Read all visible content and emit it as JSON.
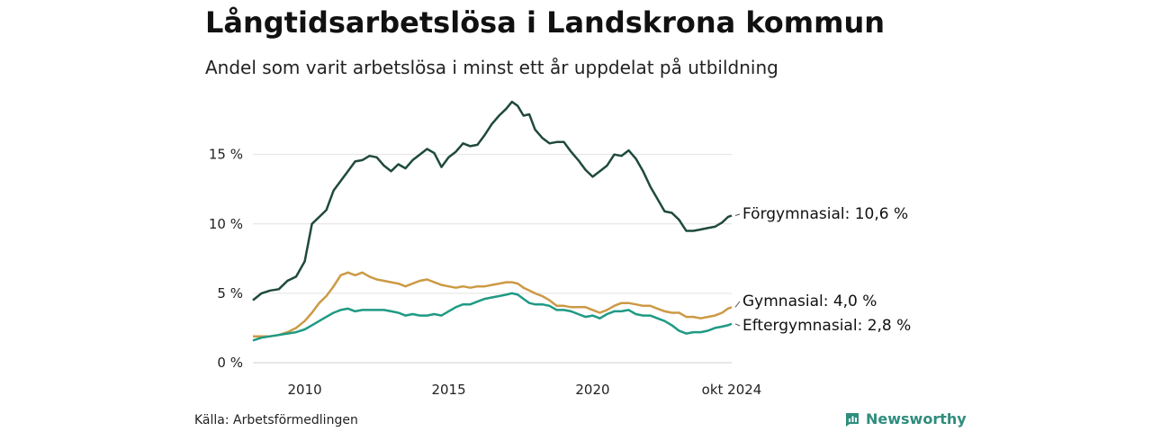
{
  "title": "Långtidsarbetslösa i Landskrona kommun",
  "subtitle": "Andel som varit arbetslösa i minst ett år uppdelat på utbildning",
  "source": "Källa: Arbetsförmedlingen",
  "brand": "Newsworthy",
  "chart_data": {
    "type": "line",
    "title": "Långtidsarbetslösa i Landskrona kommun",
    "subtitle": "Andel som varit arbetslösa i minst ett år uppdelat på utbildning",
    "xlabel": "",
    "ylabel": "",
    "xlim": [
      2008.2,
      2024.83
    ],
    "ylim": [
      0,
      19
    ],
    "x_ticks": [
      {
        "value": 2010,
        "label": "2010"
      },
      {
        "value": 2015,
        "label": "2015"
      },
      {
        "value": 2020,
        "label": "2020"
      },
      {
        "value": 2024.83,
        "label": "okt 2024"
      }
    ],
    "y_ticks": [
      {
        "value": 0,
        "label": "0 %"
      },
      {
        "value": 5,
        "label": "5 %"
      },
      {
        "value": 10,
        "label": "10 %"
      },
      {
        "value": 15,
        "label": "15 %"
      }
    ],
    "grid": "horizontal",
    "legend": "end labels",
    "series": [
      {
        "name": "Förgymnasial",
        "end_label": "Förgymnasial: 10,6 %",
        "color": "#1f4a3c",
        "points": [
          [
            2008.2,
            4.5
          ],
          [
            2008.5,
            5.0
          ],
          [
            2008.8,
            5.2
          ],
          [
            2009.1,
            5.3
          ],
          [
            2009.4,
            5.9
          ],
          [
            2009.7,
            6.2
          ],
          [
            2010.0,
            7.3
          ],
          [
            2010.25,
            10.0
          ],
          [
            2010.5,
            10.5
          ],
          [
            2010.75,
            11.0
          ],
          [
            2011.0,
            12.4
          ],
          [
            2011.25,
            13.1
          ],
          [
            2011.5,
            13.8
          ],
          [
            2011.75,
            14.5
          ],
          [
            2012.0,
            14.6
          ],
          [
            2012.25,
            14.9
          ],
          [
            2012.5,
            14.8
          ],
          [
            2012.75,
            14.2
          ],
          [
            2013.0,
            13.8
          ],
          [
            2013.25,
            14.3
          ],
          [
            2013.5,
            14.0
          ],
          [
            2013.75,
            14.6
          ],
          [
            2014.0,
            15.0
          ],
          [
            2014.25,
            15.4
          ],
          [
            2014.5,
            15.1
          ],
          [
            2014.75,
            14.1
          ],
          [
            2015.0,
            14.8
          ],
          [
            2015.25,
            15.2
          ],
          [
            2015.5,
            15.8
          ],
          [
            2015.75,
            15.6
          ],
          [
            2016.0,
            15.7
          ],
          [
            2016.25,
            16.4
          ],
          [
            2016.5,
            17.2
          ],
          [
            2016.75,
            17.8
          ],
          [
            2017.0,
            18.3
          ],
          [
            2017.2,
            18.8
          ],
          [
            2017.4,
            18.5
          ],
          [
            2017.6,
            17.8
          ],
          [
            2017.8,
            17.9
          ],
          [
            2018.0,
            16.8
          ],
          [
            2018.25,
            16.2
          ],
          [
            2018.5,
            15.8
          ],
          [
            2018.75,
            15.9
          ],
          [
            2019.0,
            15.9
          ],
          [
            2019.25,
            15.2
          ],
          [
            2019.5,
            14.6
          ],
          [
            2019.75,
            13.9
          ],
          [
            2020.0,
            13.4
          ],
          [
            2020.25,
            13.8
          ],
          [
            2020.5,
            14.2
          ],
          [
            2020.75,
            15.0
          ],
          [
            2021.0,
            14.9
          ],
          [
            2021.25,
            15.3
          ],
          [
            2021.5,
            14.7
          ],
          [
            2021.75,
            13.8
          ],
          [
            2022.0,
            12.7
          ],
          [
            2022.25,
            11.8
          ],
          [
            2022.5,
            10.9
          ],
          [
            2022.75,
            10.8
          ],
          [
            2023.0,
            10.3
          ],
          [
            2023.25,
            9.5
          ],
          [
            2023.5,
            9.5
          ],
          [
            2023.75,
            9.6
          ],
          [
            2024.0,
            9.7
          ],
          [
            2024.25,
            9.8
          ],
          [
            2024.5,
            10.1
          ],
          [
            2024.7,
            10.5
          ],
          [
            2024.83,
            10.6
          ]
        ]
      },
      {
        "name": "Gymnasial",
        "end_label": "Gymnasial:  4,0 %",
        "color": "#cc9a45",
        "points": [
          [
            2008.2,
            1.9
          ],
          [
            2008.5,
            1.9
          ],
          [
            2008.8,
            1.9
          ],
          [
            2009.1,
            2.0
          ],
          [
            2009.4,
            2.2
          ],
          [
            2009.7,
            2.5
          ],
          [
            2010.0,
            3.0
          ],
          [
            2010.25,
            3.6
          ],
          [
            2010.5,
            4.3
          ],
          [
            2010.75,
            4.8
          ],
          [
            2011.0,
            5.5
          ],
          [
            2011.25,
            6.3
          ],
          [
            2011.5,
            6.5
          ],
          [
            2011.75,
            6.3
          ],
          [
            2012.0,
            6.5
          ],
          [
            2012.25,
            6.2
          ],
          [
            2012.5,
            6.0
          ],
          [
            2012.75,
            5.9
          ],
          [
            2013.0,
            5.8
          ],
          [
            2013.25,
            5.7
          ],
          [
            2013.5,
            5.5
          ],
          [
            2013.75,
            5.7
          ],
          [
            2014.0,
            5.9
          ],
          [
            2014.25,
            6.0
          ],
          [
            2014.5,
            5.8
          ],
          [
            2014.75,
            5.6
          ],
          [
            2015.0,
            5.5
          ],
          [
            2015.25,
            5.4
          ],
          [
            2015.5,
            5.5
          ],
          [
            2015.75,
            5.4
          ],
          [
            2016.0,
            5.5
          ],
          [
            2016.25,
            5.5
          ],
          [
            2016.5,
            5.6
          ],
          [
            2016.75,
            5.7
          ],
          [
            2017.0,
            5.8
          ],
          [
            2017.2,
            5.8
          ],
          [
            2017.4,
            5.7
          ],
          [
            2017.6,
            5.4
          ],
          [
            2017.8,
            5.2
          ],
          [
            2018.0,
            5.0
          ],
          [
            2018.25,
            4.8
          ],
          [
            2018.5,
            4.5
          ],
          [
            2018.75,
            4.1
          ],
          [
            2019.0,
            4.1
          ],
          [
            2019.25,
            4.0
          ],
          [
            2019.5,
            4.0
          ],
          [
            2019.75,
            4.0
          ],
          [
            2020.0,
            3.8
          ],
          [
            2020.25,
            3.6
          ],
          [
            2020.5,
            3.8
          ],
          [
            2020.75,
            4.1
          ],
          [
            2021.0,
            4.3
          ],
          [
            2021.25,
            4.3
          ],
          [
            2021.5,
            4.2
          ],
          [
            2021.75,
            4.1
          ],
          [
            2022.0,
            4.1
          ],
          [
            2022.25,
            3.9
          ],
          [
            2022.5,
            3.7
          ],
          [
            2022.75,
            3.6
          ],
          [
            2023.0,
            3.6
          ],
          [
            2023.25,
            3.3
          ],
          [
            2023.5,
            3.3
          ],
          [
            2023.75,
            3.2
          ],
          [
            2024.0,
            3.3
          ],
          [
            2024.25,
            3.4
          ],
          [
            2024.5,
            3.6
          ],
          [
            2024.7,
            3.9
          ],
          [
            2024.83,
            4.0
          ]
        ]
      },
      {
        "name": "Eftergymnasial",
        "end_label": "Eftergymnasial:  2,8 %",
        "color": "#1f9a84",
        "points": [
          [
            2008.2,
            1.6
          ],
          [
            2008.5,
            1.8
          ],
          [
            2008.8,
            1.9
          ],
          [
            2009.1,
            2.0
          ],
          [
            2009.4,
            2.1
          ],
          [
            2009.7,
            2.2
          ],
          [
            2010.0,
            2.4
          ],
          [
            2010.25,
            2.7
          ],
          [
            2010.5,
            3.0
          ],
          [
            2010.75,
            3.3
          ],
          [
            2011.0,
            3.6
          ],
          [
            2011.25,
            3.8
          ],
          [
            2011.5,
            3.9
          ],
          [
            2011.75,
            3.7
          ],
          [
            2012.0,
            3.8
          ],
          [
            2012.25,
            3.8
          ],
          [
            2012.5,
            3.8
          ],
          [
            2012.75,
            3.8
          ],
          [
            2013.0,
            3.7
          ],
          [
            2013.25,
            3.6
          ],
          [
            2013.5,
            3.4
          ],
          [
            2013.75,
            3.5
          ],
          [
            2014.0,
            3.4
          ],
          [
            2014.25,
            3.4
          ],
          [
            2014.5,
            3.5
          ],
          [
            2014.75,
            3.4
          ],
          [
            2015.0,
            3.7
          ],
          [
            2015.25,
            4.0
          ],
          [
            2015.5,
            4.2
          ],
          [
            2015.75,
            4.2
          ],
          [
            2016.0,
            4.4
          ],
          [
            2016.25,
            4.6
          ],
          [
            2016.5,
            4.7
          ],
          [
            2016.75,
            4.8
          ],
          [
            2017.0,
            4.9
          ],
          [
            2017.2,
            5.0
          ],
          [
            2017.4,
            4.9
          ],
          [
            2017.6,
            4.6
          ],
          [
            2017.8,
            4.3
          ],
          [
            2018.0,
            4.2
          ],
          [
            2018.25,
            4.2
          ],
          [
            2018.5,
            4.1
          ],
          [
            2018.75,
            3.8
          ],
          [
            2019.0,
            3.8
          ],
          [
            2019.25,
            3.7
          ],
          [
            2019.5,
            3.5
          ],
          [
            2019.75,
            3.3
          ],
          [
            2020.0,
            3.4
          ],
          [
            2020.25,
            3.2
          ],
          [
            2020.5,
            3.5
          ],
          [
            2020.75,
            3.7
          ],
          [
            2021.0,
            3.7
          ],
          [
            2021.25,
            3.8
          ],
          [
            2021.5,
            3.5
          ],
          [
            2021.75,
            3.4
          ],
          [
            2022.0,
            3.4
          ],
          [
            2022.25,
            3.2
          ],
          [
            2022.5,
            3.0
          ],
          [
            2022.75,
            2.7
          ],
          [
            2023.0,
            2.3
          ],
          [
            2023.25,
            2.1
          ],
          [
            2023.5,
            2.2
          ],
          [
            2023.75,
            2.2
          ],
          [
            2024.0,
            2.3
          ],
          [
            2024.25,
            2.5
          ],
          [
            2024.5,
            2.6
          ],
          [
            2024.7,
            2.7
          ],
          [
            2024.83,
            2.8
          ]
        ]
      }
    ]
  }
}
